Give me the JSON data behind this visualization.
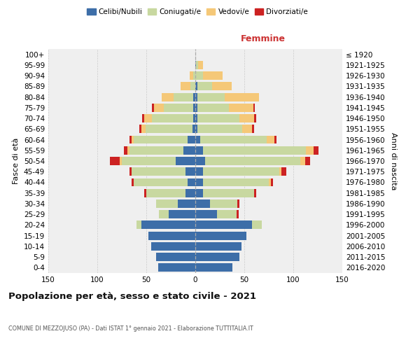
{
  "age_groups": [
    "0-4",
    "5-9",
    "10-14",
    "15-19",
    "20-24",
    "25-29",
    "30-34",
    "35-39",
    "40-44",
    "45-49",
    "50-54",
    "55-59",
    "60-64",
    "65-69",
    "70-74",
    "75-79",
    "80-84",
    "85-89",
    "90-94",
    "95-99",
    "100+"
  ],
  "birth_years": [
    "2016-2020",
    "2011-2015",
    "2006-2010",
    "2001-2005",
    "1996-2000",
    "1991-1995",
    "1986-1990",
    "1981-1985",
    "1976-1980",
    "1971-1975",
    "1966-1970",
    "1961-1965",
    "1956-1960",
    "1951-1955",
    "1946-1950",
    "1941-1945",
    "1936-1940",
    "1931-1935",
    "1926-1930",
    "1921-1925",
    "≤ 1920"
  ],
  "males": {
    "celibe": [
      38,
      40,
      45,
      48,
      55,
      27,
      18,
      10,
      8,
      10,
      20,
      12,
      8,
      3,
      2,
      2,
      2,
      0,
      0,
      0,
      0
    ],
    "coniugato": [
      0,
      0,
      0,
      0,
      5,
      10,
      22,
      40,
      55,
      55,
      55,
      55,
      55,
      48,
      42,
      30,
      20,
      5,
      2,
      0,
      0
    ],
    "vedovo": [
      0,
      0,
      0,
      0,
      0,
      0,
      0,
      0,
      0,
      0,
      2,
      2,
      2,
      4,
      8,
      10,
      12,
      10,
      4,
      0,
      0
    ],
    "divorziato": [
      0,
      0,
      0,
      0,
      0,
      0,
      0,
      2,
      2,
      2,
      10,
      4,
      2,
      2,
      2,
      2,
      0,
      0,
      0,
      0,
      0
    ]
  },
  "females": {
    "nubile": [
      38,
      45,
      47,
      52,
      58,
      22,
      15,
      8,
      8,
      8,
      10,
      8,
      5,
      2,
      2,
      2,
      2,
      2,
      0,
      1,
      0
    ],
    "coniugata": [
      0,
      0,
      0,
      0,
      10,
      20,
      28,
      52,
      67,
      78,
      97,
      105,
      68,
      46,
      43,
      32,
      28,
      15,
      8,
      2,
      0
    ],
    "vedova": [
      0,
      0,
      0,
      0,
      0,
      0,
      0,
      0,
      2,
      2,
      5,
      8,
      8,
      10,
      15,
      25,
      35,
      20,
      20,
      5,
      0
    ],
    "divorziata": [
      0,
      0,
      0,
      0,
      0,
      2,
      2,
      2,
      2,
      5,
      5,
      5,
      2,
      2,
      2,
      2,
      0,
      0,
      0,
      0,
      0
    ]
  },
  "colors": {
    "celibe": "#3D6EA8",
    "coniugato": "#C8D8A0",
    "vedovo": "#F5C878",
    "divorziato": "#CC2222"
  },
  "xlim": 150,
  "title": "Popolazione per età, sesso e stato civile - 2021",
  "subtitle": "COMUNE DI MEZZOJUSO (PA) - Dati ISTAT 1° gennaio 2021 - Elaborazione TUTTITALIA.IT",
  "label_femmine": "Femmine",
  "ylabel_left": "Fasce di età",
  "ylabel_right": "Anni di nascita",
  "legend_labels": [
    "Celibi/Nubili",
    "Coniugati/e",
    "Vedovi/e",
    "Divorziati/e"
  ],
  "bg_color": "#efefef",
  "grid_color": "#cccccc"
}
